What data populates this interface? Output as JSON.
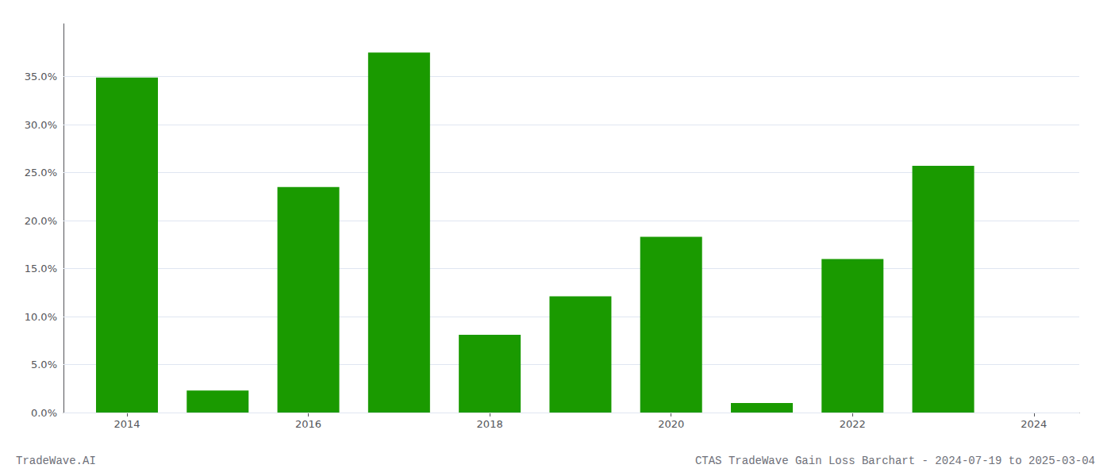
{
  "chart_data": {
    "type": "bar",
    "x": [
      2014,
      2015,
      2016,
      2017,
      2018,
      2019,
      2020,
      2021,
      2022,
      2023
    ],
    "values": [
      0.349,
      0.023,
      0.235,
      0.375,
      0.081,
      0.121,
      0.183,
      0.01,
      0.16,
      0.257
    ],
    "color": "#1a9a00",
    "xlim": [
      2013.3,
      2024.5
    ],
    "xticks": [
      2014,
      2016,
      2018,
      2020,
      2022,
      2024
    ],
    "ylim": [
      0,
      0.405
    ],
    "yticks": [
      {
        "value": 0.0,
        "label": "0.0%"
      },
      {
        "value": 0.05,
        "label": "5.0%"
      },
      {
        "value": 0.1,
        "label": "10.0%"
      },
      {
        "value": 0.15,
        "label": "15.0%"
      },
      {
        "value": 0.2,
        "label": "20.0%"
      },
      {
        "value": 0.25,
        "label": "25.0%"
      },
      {
        "value": 0.3,
        "label": "30.0%"
      },
      {
        "value": 0.35,
        "label": "35.0%"
      }
    ],
    "grid": true,
    "annotations": [
      "TradeWave.AI",
      "CTAS TradeWave Gain Loss Barchart - 2024-07-19 to 2025-03-04"
    ]
  }
}
